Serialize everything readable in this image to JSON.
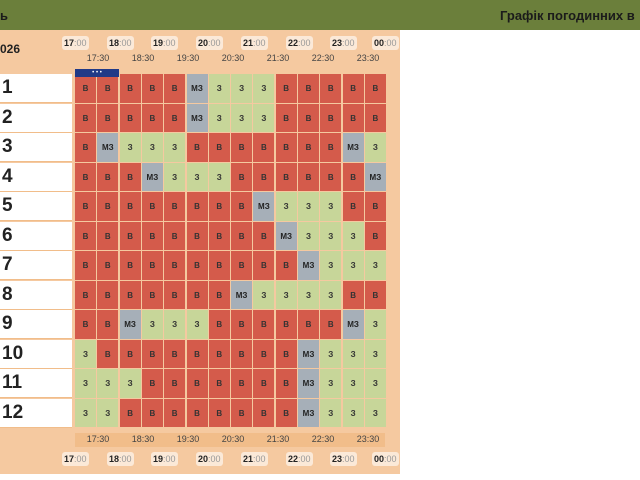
{
  "header": {
    "left_fragment": "ь",
    "right_title": "Графік погодинних в"
  },
  "panel": {
    "year_fragment": "026",
    "hours": [
      {
        "bold": "17",
        "rest": ":00"
      },
      {
        "bold": "18",
        "rest": ":00"
      },
      {
        "bold": "19",
        "rest": ":00"
      },
      {
        "bold": "20",
        "rest": ":00"
      },
      {
        "bold": "21",
        "rest": ":00"
      },
      {
        "bold": "22",
        "rest": ":00"
      },
      {
        "bold": "23",
        "rest": ":00"
      },
      {
        "bold": "00",
        "rest": ":00"
      }
    ],
    "half_hours": [
      "17:30",
      "18:30",
      "19:30",
      "20:30",
      "21:30",
      "22:30",
      "23:30"
    ],
    "now_marker": "• • •",
    "status_colors": {
      "В": "#d45b4b",
      "З": "#c7d699",
      "МЗ": "#a6afb8"
    },
    "rows": [
      {
        "label": "1",
        "cells": [
          "В",
          "В",
          "В",
          "В",
          "В",
          "МЗ",
          "З",
          "З",
          "З",
          "В",
          "В",
          "В",
          "В",
          "В"
        ]
      },
      {
        "label": "2",
        "cells": [
          "В",
          "В",
          "В",
          "В",
          "В",
          "МЗ",
          "З",
          "З",
          "З",
          "В",
          "В",
          "В",
          "В",
          "В"
        ]
      },
      {
        "label": "3",
        "cells": [
          "В",
          "МЗ",
          "З",
          "З",
          "З",
          "В",
          "В",
          "В",
          "В",
          "В",
          "В",
          "В",
          "МЗ",
          "З"
        ]
      },
      {
        "label": "4",
        "cells": [
          "В",
          "В",
          "В",
          "МЗ",
          "З",
          "З",
          "З",
          "В",
          "В",
          "В",
          "В",
          "В",
          "В",
          "МЗ"
        ]
      },
      {
        "label": "5",
        "cells": [
          "В",
          "В",
          "В",
          "В",
          "В",
          "В",
          "В",
          "В",
          "МЗ",
          "З",
          "З",
          "З",
          "В",
          "В"
        ]
      },
      {
        "label": "6",
        "cells": [
          "В",
          "В",
          "В",
          "В",
          "В",
          "В",
          "В",
          "В",
          "В",
          "МЗ",
          "З",
          "З",
          "З",
          "В"
        ]
      },
      {
        "label": "7",
        "cells": [
          "В",
          "В",
          "В",
          "В",
          "В",
          "В",
          "В",
          "В",
          "В",
          "В",
          "МЗ",
          "З",
          "З",
          "З"
        ]
      },
      {
        "label": "8",
        "cells": [
          "В",
          "В",
          "В",
          "В",
          "В",
          "В",
          "В",
          "МЗ",
          "З",
          "З",
          "З",
          "З",
          "В",
          "В"
        ]
      },
      {
        "label": "9",
        "cells": [
          "В",
          "В",
          "МЗ",
          "З",
          "З",
          "З",
          "В",
          "В",
          "В",
          "В",
          "В",
          "В",
          "МЗ",
          "З"
        ]
      },
      {
        "label": "10",
        "cells": [
          "З",
          "В",
          "В",
          "В",
          "В",
          "В",
          "В",
          "В",
          "В",
          "В",
          "МЗ",
          "З",
          "З",
          "З"
        ]
      },
      {
        "label": "11",
        "cells": [
          "З",
          "З",
          "З",
          "В",
          "В",
          "В",
          "В",
          "В",
          "В",
          "В",
          "МЗ",
          "З",
          "З",
          "З"
        ]
      },
      {
        "label": "12",
        "cells": [
          "З",
          "З",
          "В",
          "В",
          "В",
          "В",
          "В",
          "В",
          "В",
          "В",
          "МЗ",
          "З",
          "З",
          "З"
        ]
      }
    ]
  }
}
